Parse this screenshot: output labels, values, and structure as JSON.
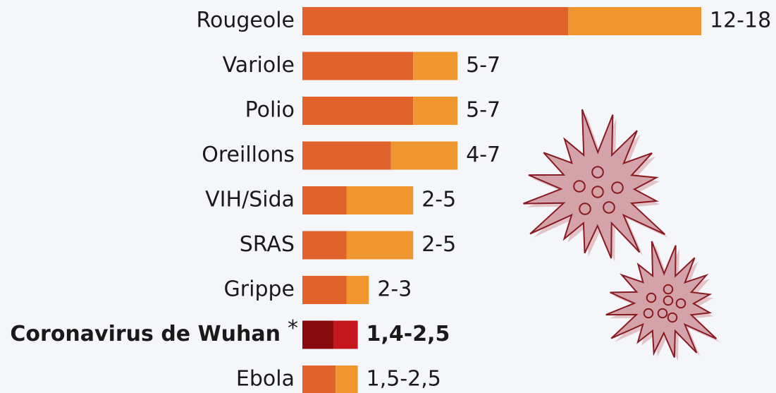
{
  "chart_data": {
    "type": "range_bar",
    "categories": [
      "Rougeole",
      "Variole",
      "Polio",
      "Oreillons",
      "VIH/Sida",
      "SRAS",
      "Grippe",
      "Coronavirus de Wuhan",
      "Ebola"
    ],
    "low": [
      12,
      5,
      5,
      4,
      2,
      2,
      2,
      1.4,
      1.5
    ],
    "high": [
      18,
      7,
      7,
      7,
      5,
      5,
      3,
      2.5,
      2.5
    ],
    "value_labels": [
      "12-18",
      "5-7",
      "5-7",
      "4-7",
      "2-5",
      "2-5",
      "2-3",
      "1,4-2,5",
      "1,5-2,5"
    ],
    "low_color": "#e2622c",
    "high_color": "#f0962f",
    "highlight": {
      "index": 7,
      "low_color": "#860a0e",
      "high_color": "#c4161c",
      "marker": "*"
    },
    "xlim": [
      0,
      18
    ]
  }
}
